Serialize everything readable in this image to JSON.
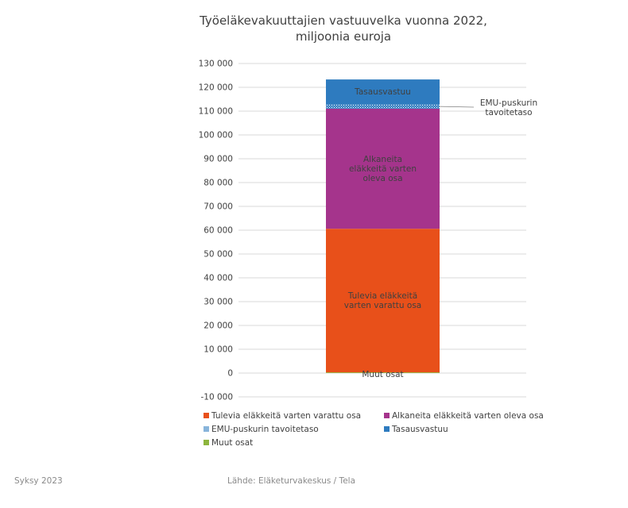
{
  "title_lines": [
    "Työeläkevakuuttajien vastuuvelka vuonna 2022,",
    "miljoonia euroja"
  ],
  "footer": {
    "left": "Syksy 2023",
    "source": "Lähde: Eläketurvakeskus / Tela"
  },
  "chart_data": {
    "type": "bar",
    "stacked": true,
    "title": "Työeläkevakuuttajien vastuuvelka vuonna 2022, miljoonia euroja",
    "categories": [
      ""
    ],
    "ylim": [
      -10000,
      130000
    ],
    "ytick_step": 10000,
    "ytick_labels": [
      "130 000",
      "120 000",
      "110 000",
      "100 000",
      "90 000",
      "80 000",
      "70 000",
      "60 000",
      "50 000",
      "40 000",
      "30 000",
      "20 000",
      "10 000",
      "0",
      "-10 000"
    ],
    "grid": true,
    "legend_position": "bottom",
    "series": [
      {
        "name": "Muut osat",
        "values": [
          300
        ],
        "color": "#8DB53D",
        "label": "Muut osat"
      },
      {
        "name": "Tulevia eläkkeitä varten varattu osa",
        "values": [
          60300
        ],
        "color": "#E8501A",
        "label": "Tulevia eläkkeitä\nvarten varattu osa"
      },
      {
        "name": "Alkaneita eläkkeitä varten oleva osa",
        "values": [
          50400
        ],
        "color": "#A5348C",
        "label": "Alkaneita\neläkkeitä varten\noleva osa"
      },
      {
        "name": "EMU-puskurin tavoitetaso",
        "values": [
          1900
        ],
        "color": "#2E7BBF",
        "pattern": "dotted",
        "label": "EMU-puskurin\ntavoitetaso",
        "label_outside": true
      },
      {
        "name": "Tasausvastuu",
        "values": [
          10400
        ],
        "color": "#2E7BBF",
        "label": "Tasausvastuu"
      }
    ]
  },
  "legend": [
    {
      "label": "Tulevia eläkkeitä varten varattu osa",
      "color": "#E8501A"
    },
    {
      "label": "Alkaneita eläkkeitä varten oleva osa",
      "color": "#A5348C"
    },
    {
      "label": "EMU-puskurin tavoitetaso",
      "color": "#2E7BBF",
      "pattern": "dotted"
    },
    {
      "label": "Tasausvastuu",
      "color": "#2E7BBF"
    },
    {
      "label": "Muut osat",
      "color": "#8DB53D"
    }
  ]
}
